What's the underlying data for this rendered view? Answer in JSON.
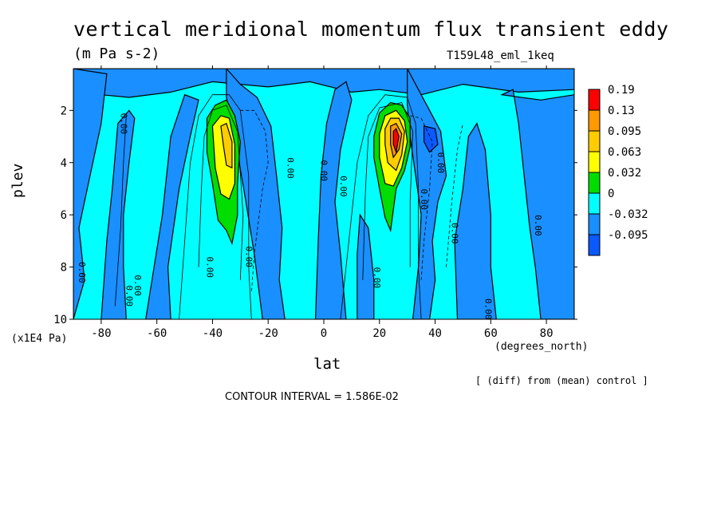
{
  "chart_data": {
    "type": "heatmap",
    "title": "vertical meridional momentum flux transient eddy",
    "units": "(m Pa s-2)",
    "run_label": "T159L48_eml_1keq",
    "xlabel": "lat",
    "x_units_label": "(degrees_north)",
    "ylabel": "plev",
    "y_multiplier_label": "(x1E4 Pa)",
    "note": "[ (diff) from (mean) control ]",
    "contour_interval_label": "CONTOUR INTERVAL = 1.586E-02",
    "xlim": [
      -90,
      90
    ],
    "ylim": [
      10,
      0.4
    ],
    "x_ticks": [
      -80,
      -60,
      -40,
      -20,
      0,
      20,
      40,
      60,
      80
    ],
    "y_ticks": [
      2,
      4,
      6,
      8,
      10
    ],
    "contour_label": "0.00",
    "legend": {
      "labels": [
        "0.19",
        "0.13",
        "0.095",
        "0.063",
        "0.032",
        "0",
        "-0.032",
        "-0.095"
      ],
      "colors": [
        "#ff0000",
        "#ff9900",
        "#ffcc00",
        "#ffff00",
        "#00dd00",
        "#00ffff",
        "#1a8fff",
        "#0a5aff"
      ]
    },
    "background_color": "#00ffff",
    "features": [
      {
        "name": "southern-positive-maximum",
        "lat": -36,
        "plev": 3.6,
        "value": 0.07
      },
      {
        "name": "southern-negative-minimum",
        "lat": -27,
        "plev": 3.2,
        "value": -0.06
      },
      {
        "name": "northern-positive-maximum",
        "lat": 25,
        "plev": 3.0,
        "value": 0.19
      },
      {
        "name": "northern-negative-minimum",
        "lat": 38,
        "plev": 3.3,
        "value": -0.04
      }
    ]
  }
}
